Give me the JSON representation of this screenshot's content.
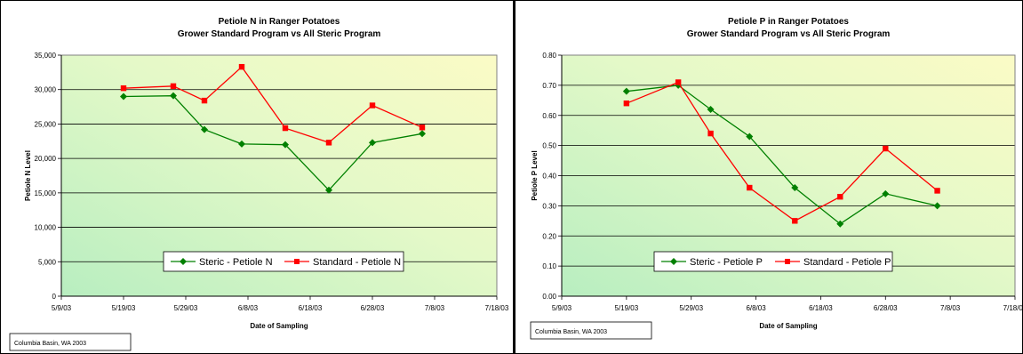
{
  "chart_data": [
    {
      "type": "line",
      "title": "Petiole N in Ranger Potatoes",
      "subtitle": "Grower Standard Program vs All Steric Program",
      "xlabel": "Date of Sampling",
      "ylabel": "Petiole N Level",
      "x_ticks": [
        "5/9/03",
        "5/19/03",
        "5/29/03",
        "6/8/03",
        "6/18/03",
        "6/28/03",
        "7/8/03",
        "7/18/03"
      ],
      "y_ticks": [
        "0",
        "5,000",
        "10,000",
        "15,000",
        "20,000",
        "25,000",
        "30,000",
        "35,000"
      ],
      "xlim": [
        "2003-05-09",
        "2003-07-18"
      ],
      "ylim": [
        0,
        35000
      ],
      "grid": "horizontal",
      "legend": "bottom-center",
      "note": "Columbia Basin, WA 2003",
      "series": [
        {
          "name": "Steric - Petiole N",
          "color": "#008000",
          "marker": "diamond",
          "x": [
            "2003-05-19",
            "2003-05-27",
            "2003-06-01",
            "2003-06-07",
            "2003-06-14",
            "2003-06-21",
            "2003-06-28",
            "2003-07-06"
          ],
          "values": [
            29000,
            29100,
            24200,
            22100,
            22000,
            15400,
            22300,
            23600
          ]
        },
        {
          "name": "Standard - Petiole N",
          "color": "#ff0000",
          "marker": "square",
          "x": [
            "2003-05-19",
            "2003-05-27",
            "2003-06-01",
            "2003-06-07",
            "2003-06-14",
            "2003-06-21",
            "2003-06-28",
            "2003-07-06"
          ],
          "values": [
            30200,
            30500,
            28400,
            33300,
            24400,
            22300,
            27700,
            24500
          ]
        }
      ]
    },
    {
      "type": "line",
      "title": "Petiole P in Ranger Potatoes",
      "subtitle": "Grower Standard Program vs All Steric Program",
      "xlabel": "Date of Sampling",
      "ylabel": "Petiole P Level",
      "x_ticks": [
        "5/9/03",
        "5/19/03",
        "5/29/03",
        "6/8/03",
        "6/18/03",
        "6/28/03",
        "7/8/03",
        "7/18/03"
      ],
      "y_ticks": [
        "0.00",
        "0.10",
        "0.20",
        "0.30",
        "0.40",
        "0.50",
        "0.60",
        "0.70",
        "0.80"
      ],
      "xlim": [
        "2003-05-09",
        "2003-07-18"
      ],
      "ylim": [
        0,
        0.8
      ],
      "grid": "horizontal",
      "legend": "bottom-center",
      "note": "Columbia Basin, WA 2003",
      "series": [
        {
          "name": "Steric - Petiole P",
          "color": "#008000",
          "marker": "diamond",
          "x": [
            "2003-05-19",
            "2003-05-27",
            "2003-06-01",
            "2003-06-07",
            "2003-06-14",
            "2003-06-21",
            "2003-06-28",
            "2003-07-06"
          ],
          "values": [
            0.68,
            0.7,
            0.62,
            0.53,
            0.36,
            0.24,
            0.34,
            0.3
          ]
        },
        {
          "name": "Standard - Petiole P",
          "color": "#ff0000",
          "marker": "square",
          "x": [
            "2003-05-19",
            "2003-05-27",
            "2003-06-01",
            "2003-06-07",
            "2003-06-14",
            "2003-06-21",
            "2003-06-28",
            "2003-07-06"
          ],
          "values": [
            0.64,
            0.71,
            0.54,
            0.36,
            0.25,
            0.33,
            0.49,
            0.35
          ]
        }
      ]
    }
  ]
}
